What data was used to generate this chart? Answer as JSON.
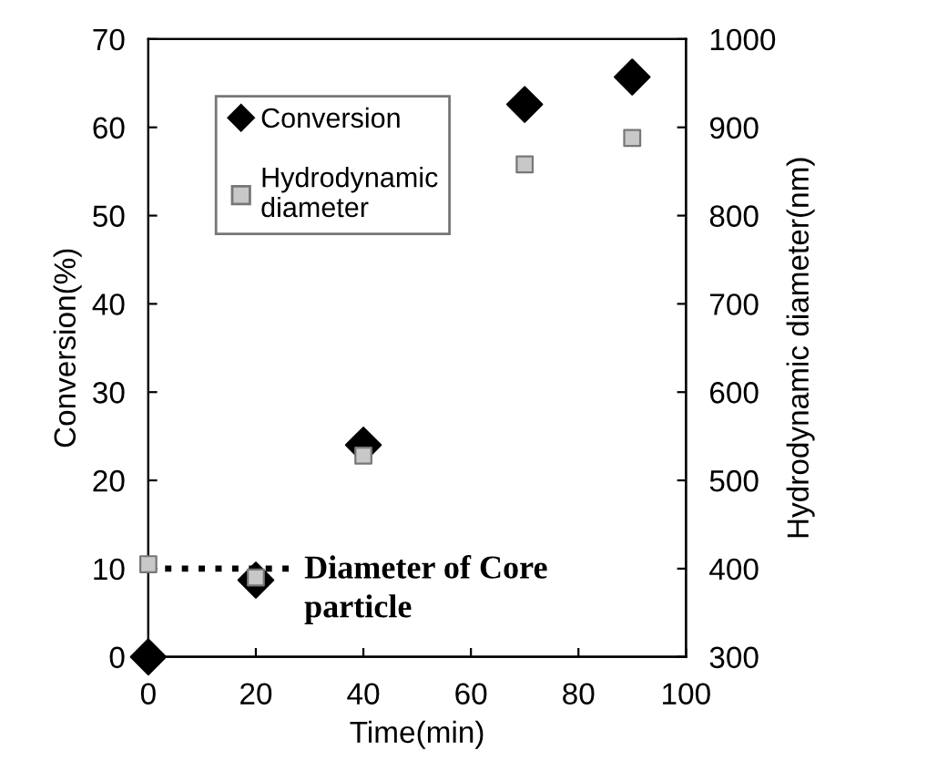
{
  "chart_data": {
    "type": "scatter",
    "xlabel": "Time(min)",
    "ylabel": "Conversion(%)",
    "y2label": "Hydrodynamic diameter(nm)",
    "x": [
      0,
      20,
      40,
      70,
      90
    ],
    "series": [
      {
        "name": "Conversion",
        "color": "#000000",
        "marker": "diamond",
        "values": [
          0,
          8.7,
          24,
          62.6,
          65.7
        ]
      },
      {
        "name": "Hydrodynamic diameter",
        "color": "#c8c8c8",
        "marker": "square",
        "axis": "y2",
        "values": [
          405,
          390,
          528,
          858,
          888
        ]
      }
    ],
    "xlim": [
      0,
      100
    ],
    "xticks": [
      0,
      20,
      40,
      60,
      80,
      100
    ],
    "ylim": [
      0,
      70
    ],
    "yticks": [
      0,
      10,
      20,
      30,
      40,
      50,
      60,
      70
    ],
    "y2lim": [
      300,
      1000
    ],
    "y2ticks": [
      300,
      400,
      500,
      600,
      700,
      800,
      900,
      1000
    ],
    "ref_lines": [
      {
        "axis": "y2",
        "value": 400,
        "label": "Diameter of Core particle",
        "color": "#000000",
        "line_style": "dotted"
      }
    ],
    "grid": false,
    "legend": "top left"
  }
}
